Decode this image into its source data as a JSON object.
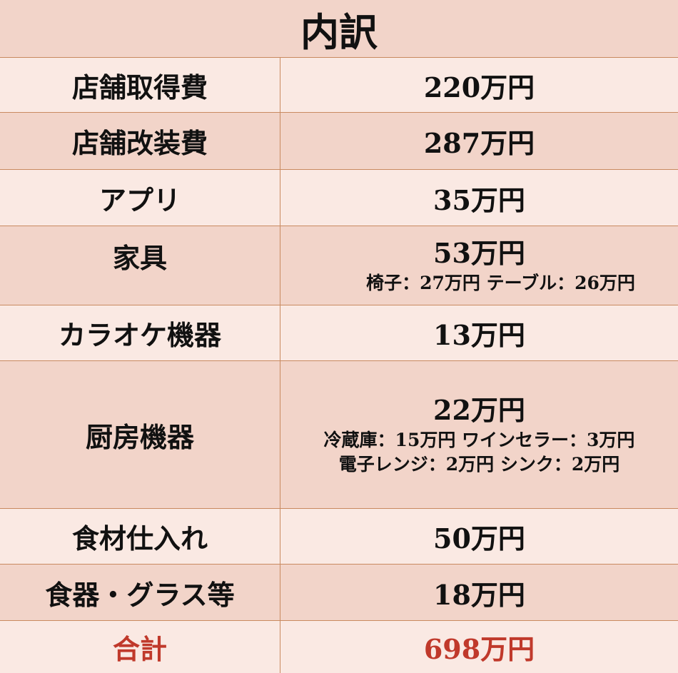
{
  "title": "内訳",
  "rows": [
    {
      "item": "店舗取得費",
      "amount": "220万円"
    },
    {
      "item": "店舗改装費",
      "amount": "287万円"
    },
    {
      "item": "アプリ",
      "amount": "35万円"
    },
    {
      "item": "家具",
      "amount": "53万円",
      "details": [
        "椅子：27万円 テーブル：26万円"
      ]
    },
    {
      "item": "カラオケ機器",
      "amount": "13万円"
    },
    {
      "item": "厨房機器",
      "amount": "22万円",
      "details": [
        "冷蔵庫：15万円 ワインセラー：3万円",
        "電子レンジ：2万円 シンク：2万円"
      ]
    },
    {
      "item": "食材仕入れ",
      "amount": "50万円"
    },
    {
      "item": "食器・グラス等",
      "amount": "18万円"
    }
  ],
  "total": {
    "label": "合計",
    "amount": "698万円"
  },
  "colors": {
    "light_row": "#fae9e3",
    "dark_row": "#f2d4c9",
    "border": "#c98a60",
    "total_text": "#c0392b"
  }
}
